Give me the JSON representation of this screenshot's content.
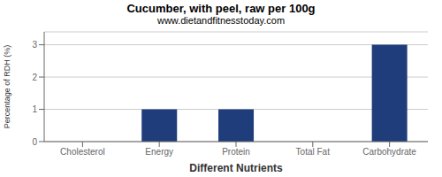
{
  "chart_data": {
    "type": "bar",
    "title": "Cucumber, with peel, raw per 100g",
    "subtitle": "www.dietandfitnesstoday.com",
    "x_label": "Different Nutrients",
    "y_label": "Percentage of RDH (%)",
    "categories": [
      "Cholesterol",
      "Energy",
      "Protein",
      "Total Fat",
      "Carbohydrate"
    ],
    "values": [
      0.0,
      1.0,
      1.0,
      0.0,
      3.0
    ],
    "color": "#1f3d7a",
    "ylim": [
      0,
      3.4
    ],
    "yticks": [
      0.0,
      1.0,
      2.0,
      3.0
    ],
    "grid": true
  }
}
